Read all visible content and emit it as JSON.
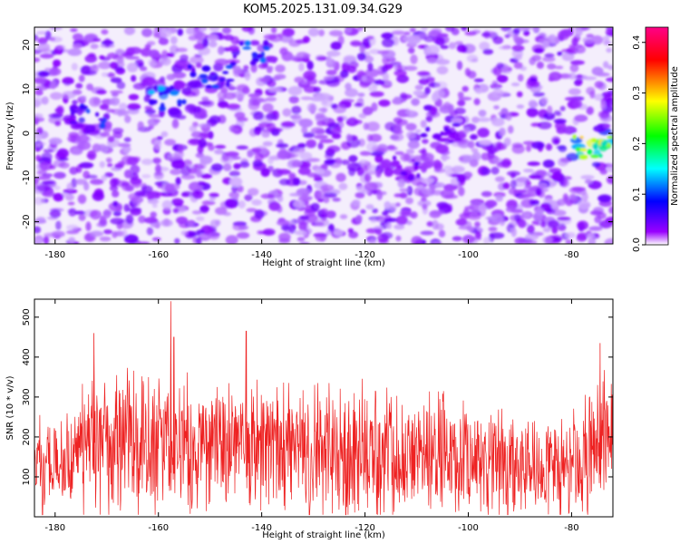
{
  "title": "KOM5.2025.131.09.34.G29",
  "chart_data": [
    {
      "type": "heatmap",
      "xlabel": "Height of straight line (km)",
      "ylabel": "Frequency (Hz)",
      "xlim": [
        -184,
        -72
      ],
      "ylim": [
        -25,
        24
      ],
      "x_ticks": [
        -180,
        -160,
        -140,
        -120,
        -100,
        -80
      ],
      "y_ticks": [
        -20,
        -10,
        0,
        10,
        20
      ],
      "colorbar": {
        "label": "Normalized spectral amplitude",
        "range": [
          0.0,
          0.43
        ],
        "ticks": [
          "0.0",
          "0.1",
          "0.2",
          "0.3",
          "0.4"
        ],
        "colors": [
          "#ffffff",
          "#8800ff",
          "#0000ff",
          "#00ffff",
          "#00ff00",
          "#ffff00",
          "#ff0000",
          "#ff0088"
        ]
      },
      "features": [
        {
          "x": -158,
          "y": 8,
          "value": 0.15
        },
        {
          "x": -150,
          "y": 13,
          "value": 0.12
        },
        {
          "x": -142,
          "y": 18,
          "value": 0.13
        },
        {
          "x": -173,
          "y": 4,
          "value": 0.12
        },
        {
          "x": -112,
          "y": -8,
          "value": 0.08
        },
        {
          "x": -105,
          "y": 0,
          "value": 0.08
        },
        {
          "x": -76,
          "y": -3,
          "value": 0.3
        }
      ]
    },
    {
      "type": "line",
      "xlabel": "Height of straight line (km)",
      "ylabel": "SNR (10 * v/v)",
      "xlim": [
        -184,
        -72
      ],
      "ylim": [
        0,
        545
      ],
      "x_ticks": [
        -180,
        -160,
        -140,
        -120,
        -100,
        -80
      ],
      "y_ticks": [
        100,
        200,
        300,
        400,
        500
      ],
      "color": "#ee2222",
      "series": [
        {
          "x": [
            -184,
            -182,
            -180,
            -178,
            -176,
            -174,
            -172,
            -170,
            -168,
            -166,
            -164,
            -162,
            -160,
            -158,
            -156,
            -154,
            -152,
            -150,
            -148,
            -146,
            -144,
            -142,
            -140,
            -138,
            -136,
            -134,
            -132,
            -130,
            -128,
            -126,
            -124,
            -122,
            -120,
            -118,
            -116,
            -114,
            -112,
            -110,
            -108,
            -106,
            -104,
            -102,
            -100,
            -98,
            -96,
            -94,
            -92,
            -90,
            -88,
            -86,
            -84,
            -82,
            -80,
            -78,
            -76,
            -74,
            -72
          ],
          "y": [
            130,
            120,
            125,
            120,
            150,
            165,
            185,
            170,
            170,
            185,
            170,
            175,
            170,
            185,
            175,
            180,
            175,
            170,
            180,
            165,
            170,
            160,
            165,
            160,
            170,
            165,
            160,
            165,
            160,
            170,
            165,
            150,
            160,
            165,
            155,
            160,
            165,
            150,
            155,
            160,
            150,
            150,
            140,
            135,
            140,
            135,
            130,
            130,
            135,
            125,
            130,
            140,
            135,
            140,
            165,
            180,
            170
          ]
        }
      ],
      "peaks": [
        {
          "x": -172.5,
          "y": 460
        },
        {
          "x": -157.6,
          "y": 540
        },
        {
          "x": -143,
          "y": 465
        },
        {
          "x": -157,
          "y": 450
        },
        {
          "x": -74.5,
          "y": 435
        }
      ]
    }
  ]
}
